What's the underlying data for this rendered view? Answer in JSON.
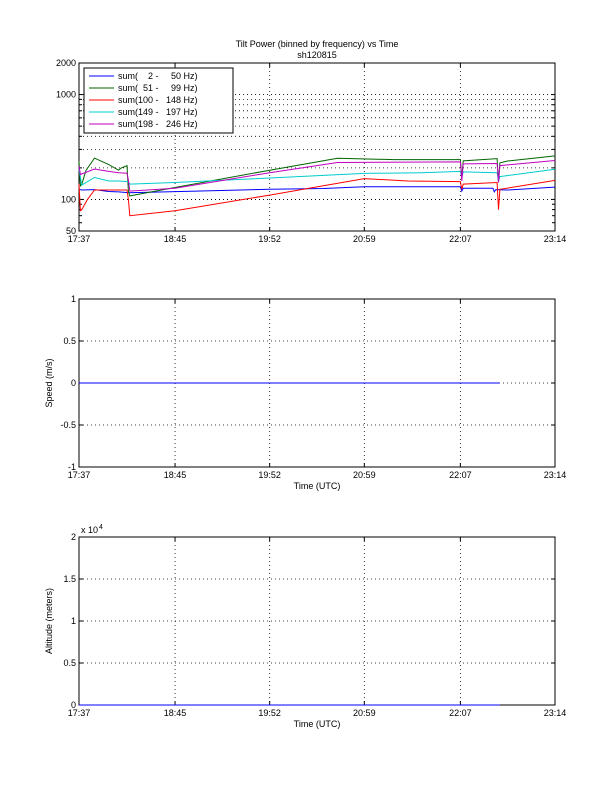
{
  "chart_data": [
    {
      "type": "line",
      "title": "Tilt Power (binned by frequency) vs Time",
      "subtitle": "sh120815",
      "xlabel": "",
      "ylabel": "",
      "yscale": "log",
      "ylim": [
        50,
        2000
      ],
      "xlim": [
        "17:37",
        "23:14"
      ],
      "xticks": [
        "17:37",
        "18:45",
        "19:52",
        "20:59",
        "22:07",
        "23:14"
      ],
      "yticks": [
        "50",
        "100",
        "1000",
        "2000"
      ],
      "grid": true,
      "legend_position": "top-left",
      "series": [
        {
          "name": "sum(    2 -     50 Hz)",
          "color": "#0000ff",
          "x": [
            "17:37",
            "17:39",
            "17:48",
            "17:58",
            "18:05",
            "18:12",
            "19:00",
            "19:52",
            "20:30",
            "20:59",
            "21:40",
            "22:07",
            "22:08",
            "22:09",
            "22:30",
            "22:31",
            "22:32",
            "22:40",
            "23:14"
          ],
          "y": [
            125,
            123,
            124,
            119,
            118,
            116,
            120,
            125,
            127,
            132,
            132,
            132,
            120,
            128,
            128,
            118,
            124,
            123,
            131
          ]
        },
        {
          "name": "sum(  51 -     99 Hz)",
          "color": "#006400",
          "x": [
            "17:37",
            "17:38",
            "17:39",
            "17:42",
            "17:48",
            "17:58",
            "18:05",
            "18:07",
            "18:11",
            "18:12",
            "18:13",
            "18:45",
            "19:52",
            "20:40",
            "21:20",
            "22:07",
            "22:08",
            "22:09",
            "22:33",
            "22:34",
            "22:35",
            "22:40",
            "23:14"
          ],
          "y": [
            232,
            135,
            140,
            190,
            248,
            215,
            190,
            200,
            210,
            120,
            108,
            130,
            190,
            247,
            240,
            240,
            158,
            233,
            245,
            145,
            223,
            232,
            260
          ]
        },
        {
          "name": "sum(100 -   148 Hz)",
          "color": "#ff0000",
          "x": [
            "17:37",
            "17:38",
            "17:39",
            "17:43",
            "17:48",
            "18:00",
            "18:11",
            "18:12",
            "18:13",
            "18:45",
            "19:52",
            "20:59",
            "21:30",
            "22:07",
            "22:08",
            "22:09",
            "22:33",
            "22:34",
            "22:35",
            "23:14"
          ],
          "y": [
            140,
            78,
            80,
            100,
            123,
            123,
            123,
            100,
            70,
            78,
            110,
            158,
            150,
            148,
            125,
            140,
            145,
            80,
            125,
            152
          ]
        },
        {
          "name": "sum(149 -   197 Hz)",
          "color": "#00cccc",
          "x": [
            "17:37",
            "17:39",
            "17:48",
            "17:58",
            "18:05",
            "18:12",
            "18:13",
            "18:45",
            "19:52",
            "20:59",
            "21:40",
            "22:07",
            "22:08",
            "22:09",
            "22:33",
            "22:34",
            "22:35",
            "23:14"
          ],
          "y": [
            195,
            137,
            162,
            150,
            150,
            148,
            140,
            145,
            160,
            177,
            180,
            185,
            162,
            183,
            180,
            150,
            165,
            194
          ]
        },
        {
          "name": "sum(198 -   246 Hz)",
          "color": "#bf00bf",
          "x": [
            "17:37",
            "17:38",
            "17:39",
            "17:48",
            "17:58",
            "18:05",
            "18:11",
            "18:12",
            "18:13",
            "18:45",
            "19:52",
            "20:40",
            "21:30",
            "22:07",
            "22:08",
            "22:09",
            "22:33",
            "22:34",
            "22:35",
            "23:14"
          ],
          "y": [
            208,
            173,
            175,
            195,
            185,
            180,
            178,
            153,
            120,
            128,
            180,
            225,
            227,
            228,
            150,
            218,
            220,
            145,
            210,
            235
          ]
        }
      ]
    },
    {
      "type": "line",
      "title": "",
      "xlabel": "Time (UTC)",
      "ylabel": "Speed (m/s)",
      "ylim": [
        -1,
        1
      ],
      "xlim": [
        "17:37",
        "23:14"
      ],
      "xticks": [
        "17:37",
        "18:45",
        "19:52",
        "20:59",
        "22:07",
        "23:14"
      ],
      "yticks": [
        "-1",
        "-0.5",
        "0",
        "0.5",
        "1"
      ],
      "grid": true,
      "series": [
        {
          "color": "#0000ff",
          "x": [
            "17:37",
            "22:35"
          ],
          "y": [
            0,
            0
          ]
        }
      ]
    },
    {
      "type": "line",
      "title": "",
      "xlabel": "Time (UTC)",
      "ylabel": "Altitude (meters)",
      "ylim": [
        0,
        20000
      ],
      "yexponent": "x 10",
      "yexponent_power": "4",
      "xlim": [
        "17:37",
        "23:14"
      ],
      "xticks": [
        "17:37",
        "18:45",
        "19:52",
        "20:59",
        "22:07",
        "23:14"
      ],
      "yticks": [
        "0",
        "0.5",
        "1",
        "1.5",
        "2"
      ],
      "grid": true,
      "series": [
        {
          "color": "#0000ff",
          "x": [
            "17:37",
            "22:35"
          ],
          "y": [
            0,
            0
          ]
        }
      ]
    }
  ]
}
